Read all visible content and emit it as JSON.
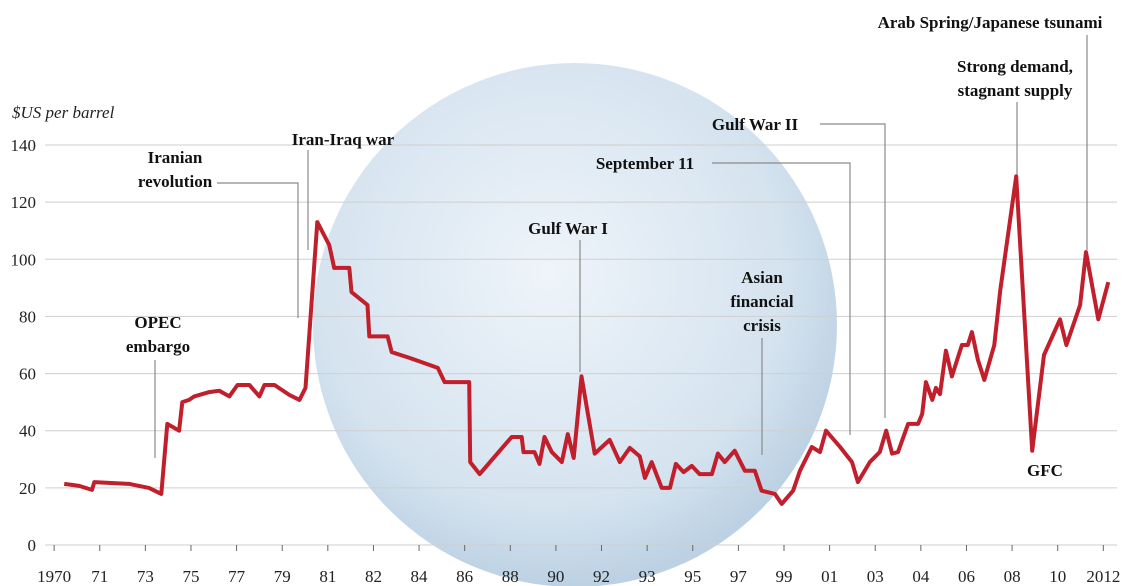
{
  "chart_data": {
    "type": "line",
    "y_label": "$US per barrel",
    "color": "#c01f2b",
    "grid": true,
    "xlim": [
      -0.2,
      23.3
    ],
    "xticks": [
      {
        "value": 0,
        "label": "1970"
      },
      {
        "value": 1,
        "label": "71"
      },
      {
        "value": 2,
        "label": "73"
      },
      {
        "value": 3,
        "label": "75"
      },
      {
        "value": 4,
        "label": "77"
      },
      {
        "value": 5,
        "label": "79"
      },
      {
        "value": 6,
        "label": "81"
      },
      {
        "value": 7,
        "label": "82"
      },
      {
        "value": 8,
        "label": "84"
      },
      {
        "value": 9,
        "label": "86"
      },
      {
        "value": 10,
        "label": "88"
      },
      {
        "value": 11,
        "label": "90"
      },
      {
        "value": 12,
        "label": "92"
      },
      {
        "value": 13,
        "label": "93"
      },
      {
        "value": 14,
        "label": "95"
      },
      {
        "value": 15,
        "label": "97"
      },
      {
        "value": 16,
        "label": "99"
      },
      {
        "value": 17,
        "label": "01"
      },
      {
        "value": 18,
        "label": "03"
      },
      {
        "value": 19,
        "label": "04"
      },
      {
        "value": 20,
        "label": "06"
      },
      {
        "value": 21,
        "label": "08"
      },
      {
        "value": 22,
        "label": "10"
      },
      {
        "value": 23,
        "label": "2012"
      }
    ],
    "ylim": [
      0,
      140
    ],
    "yticks": [
      0,
      20,
      40,
      60,
      80,
      100,
      120,
      140
    ],
    "x": [
      0.22,
      0.55,
      0.83,
      0.88,
      1.65,
      2.08,
      2.35,
      2.48,
      2.74,
      2.81,
      2.96,
      3.07,
      3.4,
      3.62,
      3.84,
      4.02,
      4.28,
      4.5,
      4.61,
      4.83,
      5.16,
      5.38,
      5.51,
      5.77,
      6.03,
      6.14,
      6.47,
      6.52,
      6.87,
      6.91,
      7.31,
      7.4,
      7.79,
      8.41,
      8.56,
      9.1,
      9.12,
      9.33,
      9.77,
      10.03,
      10.25,
      10.29,
      10.53,
      10.64,
      10.75,
      10.91,
      11.13,
      11.26,
      11.39,
      11.56,
      11.85,
      12.18,
      12.4,
      12.62,
      12.84,
      12.95,
      13.1,
      13.32,
      13.5,
      13.63,
      13.8,
      13.98,
      14.15,
      14.42,
      14.55,
      14.7,
      14.92,
      15.14,
      15.36,
      15.51,
      15.8,
      15.95,
      16.2,
      16.35,
      16.61,
      16.79,
      16.92,
      17.23,
      17.49,
      17.62,
      17.88,
      18.1,
      18.24,
      18.37,
      18.5,
      18.72,
      18.94,
      19.03,
      19.11,
      19.25,
      19.33,
      19.42,
      19.55,
      19.68,
      19.9,
      20.03,
      20.12,
      20.25,
      20.39,
      20.61,
      20.74,
      21.09,
      21.44,
      21.7,
      22.05,
      22.19,
      22.49,
      22.62,
      22.89,
      23.11
    ],
    "values": [
      21.4,
      20.7,
      19.3,
      22,
      21.4,
      20,
      17.9,
      42.4,
      40,
      50,
      50.8,
      52,
      53.5,
      54,
      52,
      56,
      56,
      52,
      56,
      56,
      52.5,
      50.8,
      55,
      113,
      105,
      97,
      97,
      88.5,
      84,
      73,
      73,
      67.5,
      65.5,
      62,
      57,
      57,
      29,
      24.8,
      33,
      37.8,
      37.8,
      32.5,
      32.5,
      28.4,
      37.8,
      32.5,
      29,
      38.8,
      30.5,
      59,
      32,
      36.8,
      29,
      34,
      31,
      23.5,
      29,
      20,
      20,
      28.4,
      25.5,
      27.7,
      24.8,
      24.8,
      32,
      29,
      33,
      26,
      26,
      19,
      17.9,
      14.4,
      19,
      26,
      34.3,
      32.5,
      40,
      34.3,
      29,
      22,
      29,
      32.5,
      40,
      32,
      32.5,
      42.4,
      42.4,
      45.9,
      57,
      50.8,
      55,
      52.8,
      68,
      59,
      70,
      70,
      74.5,
      64.8,
      57.8,
      70,
      89,
      129,
      33,
      66.5,
      79,
      70,
      84,
      102.5,
      79,
      92
    ],
    "annotations": [
      [
        "OPEC",
        "embargo"
      ],
      [
        "Iranian",
        "revolution"
      ],
      [
        "Iran-Iraq war"
      ],
      [
        "Gulf War I"
      ],
      [
        "Asian",
        "financial",
        "crisis"
      ],
      [
        "September 11"
      ],
      [
        "Gulf War II"
      ],
      [
        "Strong demand,",
        "stagnant supply"
      ],
      [
        "Arab Spring/Japanese tsunami"
      ],
      [
        "GFC"
      ]
    ]
  }
}
